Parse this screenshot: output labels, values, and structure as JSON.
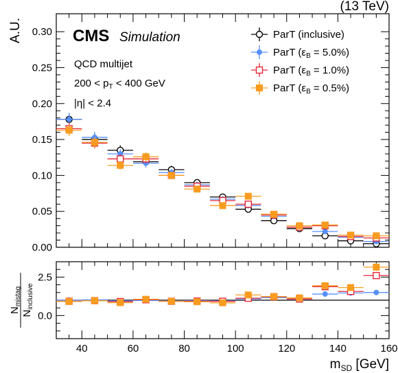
{
  "chart_data": [
    {
      "type": "scatter",
      "panel": "main",
      "ylabel": "A.U.",
      "ylim": [
        0,
        0.325
      ],
      "yticks": [
        "0.00",
        "0.05",
        "0.10",
        "0.15",
        "0.20",
        "0.25",
        "0.30"
      ],
      "xlim": [
        30,
        160
      ],
      "x_bins": [
        [
          30,
          40
        ],
        [
          40,
          50
        ],
        [
          50,
          60
        ],
        [
          60,
          70
        ],
        [
          70,
          80
        ],
        [
          80,
          90
        ],
        [
          90,
          100
        ],
        [
          100,
          110
        ],
        [
          110,
          120
        ],
        [
          120,
          130
        ],
        [
          130,
          140
        ],
        [
          140,
          150
        ],
        [
          150,
          160
        ]
      ],
      "series": [
        {
          "name": "ParT (inclusive)",
          "color": "#000000",
          "marker": "open-circle",
          "y": [
            0.178,
            0.15,
            0.135,
            0.119,
            0.108,
            0.09,
            0.07,
            0.053,
            0.037,
            0.026,
            0.016,
            0.009,
            0.005
          ]
        },
        {
          "name": "ParT (εB = 5.0%)",
          "color": "#5790fc",
          "marker": "filled-circle",
          "y": [
            0.178,
            0.153,
            0.13,
            0.117,
            0.104,
            0.087,
            0.067,
            0.058,
            0.043,
            0.028,
            0.022,
            0.014,
            0.008
          ]
        },
        {
          "name": "ParT (εB = 1.0%)",
          "color": "#e42536",
          "marker": "open-square",
          "y": [
            0.165,
            0.145,
            0.123,
            0.123,
            0.1,
            0.085,
            0.065,
            0.06,
            0.045,
            0.028,
            0.03,
            0.015,
            0.013
          ]
        },
        {
          "name": "ParT (εB = 0.5%)",
          "color": "#f89c20",
          "marker": "filled-square",
          "y": [
            0.163,
            0.146,
            0.114,
            0.126,
            0.1,
            0.081,
            0.058,
            0.071,
            0.046,
            0.03,
            0.031,
            0.017,
            0.016
          ]
        }
      ]
    },
    {
      "type": "scatter",
      "panel": "ratio",
      "ylabel_num": "N",
      "ylabel_num_sub": "mistag",
      "ylabel_den": "N",
      "ylabel_den_sub": "inclusive",
      "ylim": [
        -1.5,
        3.5
      ],
      "yticks": [
        "0.0",
        "2.5"
      ],
      "reference_line": 1.0,
      "xlabel": "m",
      "xlabel_sub": "SD",
      "xlabel_unit": " [GeV]",
      "xticks": [
        "40",
        "60",
        "80",
        "100",
        "120",
        "140",
        "160"
      ],
      "series": [
        {
          "name": "ParT (εB = 5.0%)",
          "color": "#5790fc",
          "marker": "filled-circle",
          "y": [
            1.0,
            1.02,
            0.96,
            0.98,
            0.96,
            0.97,
            0.96,
            1.09,
            1.17,
            1.08,
            1.4,
            1.47,
            1.5
          ]
        },
        {
          "name": "ParT (εB = 1.0%)",
          "color": "#e42536",
          "marker": "open-square",
          "y": [
            0.93,
            0.97,
            0.91,
            1.03,
            0.93,
            0.94,
            0.93,
            1.13,
            1.22,
            1.08,
            1.88,
            1.57,
            2.6
          ]
        },
        {
          "name": "ParT (εB = 0.5%)",
          "color": "#f89c20",
          "marker": "filled-square",
          "y": [
            0.92,
            0.97,
            0.84,
            1.06,
            0.93,
            0.9,
            0.83,
            1.34,
            1.24,
            1.15,
            1.94,
            1.82,
            3.15
          ]
        }
      ]
    }
  ],
  "labels": {
    "energy": "(13 TeV)",
    "cms": "CMS",
    "simulation": "Simulation",
    "process": "QCD multijet",
    "pt_lo": "200 < p",
    "pt_sub": "T",
    "pt_hi": " < 400 GeV",
    "eta": "|η| < 2.4"
  },
  "legend": [
    {
      "label": "ParT (inclusive)",
      "color": "#000000",
      "marker": "open-circle"
    },
    {
      "label": "ParT (ε",
      "sub": "B",
      "tail": " = 5.0%)",
      "color": "#5790fc",
      "marker": "filled-circle"
    },
    {
      "label": "ParT (ε",
      "sub": "B",
      "tail": " = 1.0%)",
      "color": "#e42536",
      "marker": "open-square"
    },
    {
      "label": "ParT (ε",
      "sub": "B",
      "tail": " = 0.5%)",
      "color": "#f89c20",
      "marker": "filled-square"
    }
  ]
}
